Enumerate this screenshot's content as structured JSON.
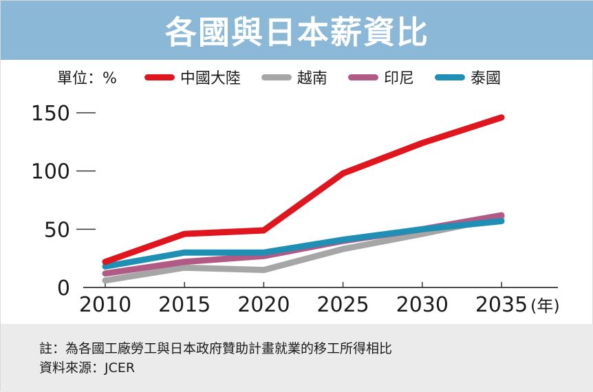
{
  "title": "各國與日本薪資比",
  "unit_label": "單位：%",
  "colors": {
    "title_bar": "#8ab8d6",
    "footer_bg": "#ebebeb"
  },
  "chart_data": {
    "type": "line",
    "x": [
      2010,
      2015,
      2020,
      2025,
      2030,
      2035
    ],
    "x_tick_labels": [
      "2010",
      "2015",
      "2020",
      "2025",
      "2030",
      "2035"
    ],
    "x_unit_label": "(年)",
    "ylim": [
      0,
      150
    ],
    "y_ticks": [
      0,
      50,
      100,
      150
    ],
    "y_tick_labels": [
      "0",
      "50",
      "100",
      "150"
    ],
    "grid": false,
    "legend_position": "top",
    "series": [
      {
        "name": "中國大陸",
        "color": "#e0161f",
        "values": [
          22,
          46,
          49,
          98,
          124,
          146
        ]
      },
      {
        "name": "越南",
        "color": "#a6a6a6",
        "values": [
          6,
          17,
          15,
          33,
          46,
          60
        ]
      },
      {
        "name": "印尼",
        "color": "#b05a85",
        "values": [
          12,
          22,
          27,
          40,
          50,
          62
        ]
      },
      {
        "name": "泰國",
        "color": "#1f8fb4",
        "values": [
          18,
          30,
          30,
          41,
          50,
          57
        ]
      }
    ]
  },
  "footer": {
    "note": "註：為各國工廠勞工與日本政府贊助計畫就業的移工所得相比",
    "source": "資料來源：JCER"
  }
}
